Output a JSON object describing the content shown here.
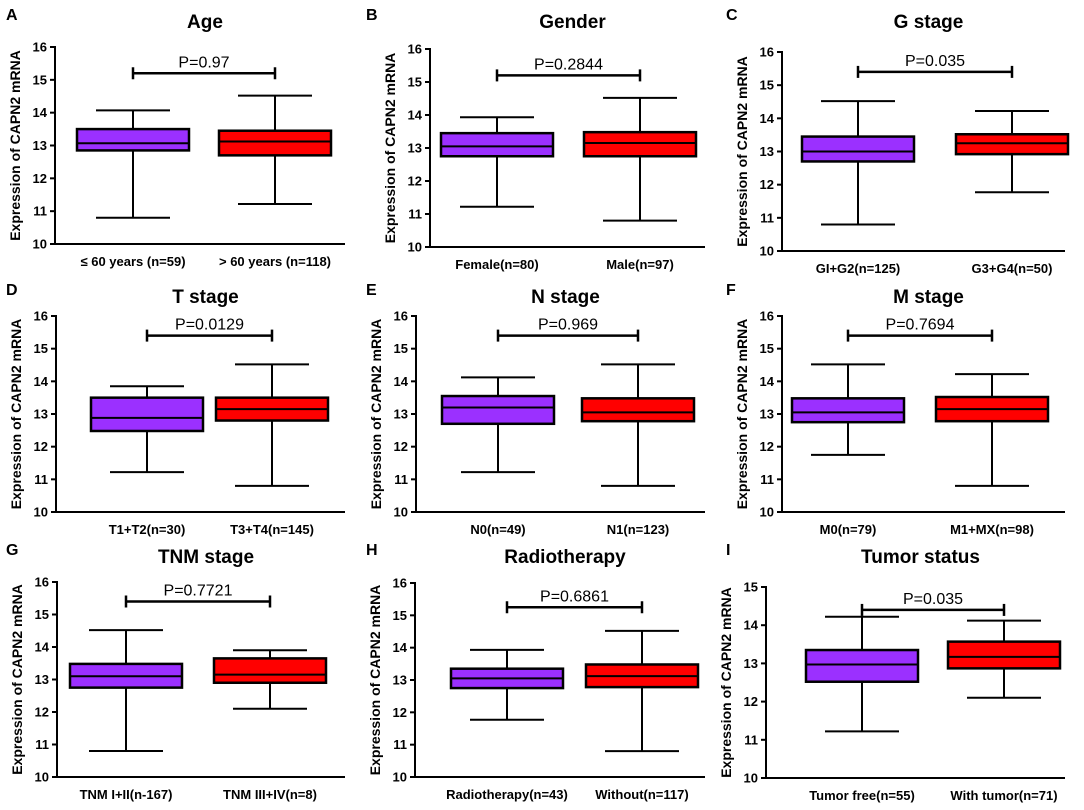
{
  "colors": {
    "group1": "#9b30ff",
    "group2": "#ff0000",
    "axis": "#000000"
  },
  "chart_data": [
    {
      "panel": "A",
      "type": "box",
      "title": "Age",
      "ylabel": "Expression of CAPN2 mRNA",
      "ylim": [
        10,
        16
      ],
      "yticks": [
        10,
        11,
        12,
        13,
        14,
        15,
        16
      ],
      "categories": [
        "≤ 60 years (n=59)",
        "> 60 years (n=118)"
      ],
      "boxes": [
        {
          "min": 10.8,
          "q1": 12.85,
          "median": 13.07,
          "q3": 13.5,
          "max": 14.07
        },
        {
          "min": 11.22,
          "q1": 12.7,
          "median": 13.12,
          "q3": 13.45,
          "max": 14.52
        }
      ],
      "pvalue": "P=0.97",
      "bracket_y": 15.2
    },
    {
      "panel": "B",
      "type": "box",
      "title": "Gender",
      "ylabel": "Expression of CAPN2 mRNA",
      "ylim": [
        10,
        16
      ],
      "yticks": [
        10,
        11,
        12,
        13,
        14,
        15,
        16
      ],
      "categories": [
        "Female(n=80)",
        "Male(n=97)"
      ],
      "boxes": [
        {
          "min": 11.22,
          "q1": 12.75,
          "median": 13.05,
          "q3": 13.45,
          "max": 13.93
        },
        {
          "min": 10.8,
          "q1": 12.75,
          "median": 13.15,
          "q3": 13.48,
          "max": 14.52
        }
      ],
      "pvalue": "P=0.2844",
      "bracket_y": 15.2
    },
    {
      "panel": "C",
      "type": "box",
      "title": "G stage",
      "ylabel": "Expression of CAPN2 mRNA",
      "ylim": [
        10,
        16
      ],
      "yticks": [
        10,
        11,
        12,
        13,
        14,
        15,
        16
      ],
      "categories": [
        "GI+G2(n=125)",
        "G3+G4(n=50)"
      ],
      "boxes": [
        {
          "min": 10.8,
          "q1": 12.7,
          "median": 13.0,
          "q3": 13.45,
          "max": 14.52
        },
        {
          "min": 11.77,
          "q1": 12.92,
          "median": 13.25,
          "q3": 13.52,
          "max": 14.22
        }
      ],
      "pvalue": "P=0.035",
      "bracket_y": 15.4
    },
    {
      "panel": "D",
      "type": "box",
      "title": "T stage",
      "ylabel": "Expression of CAPN2 mRNA",
      "ylim": [
        10,
        16
      ],
      "yticks": [
        10,
        11,
        12,
        13,
        14,
        15,
        16
      ],
      "categories": [
        "T1+T2(n=30)",
        "T3+T4(n=145)"
      ],
      "boxes": [
        {
          "min": 11.22,
          "q1": 12.48,
          "median": 12.88,
          "q3": 13.5,
          "max": 13.85
        },
        {
          "min": 10.8,
          "q1": 12.8,
          "median": 13.15,
          "q3": 13.5,
          "max": 14.52
        }
      ],
      "pvalue": "P=0.0129",
      "bracket_y": 15.4
    },
    {
      "panel": "E",
      "type": "box",
      "title": "N stage",
      "ylabel": "Expression of CAPN2 mRNA",
      "ylim": [
        10,
        16
      ],
      "yticks": [
        10,
        11,
        12,
        13,
        14,
        15,
        16
      ],
      "categories": [
        "N0(n=49)",
        "N1(n=123)"
      ],
      "boxes": [
        {
          "min": 11.22,
          "q1": 12.7,
          "median": 13.2,
          "q3": 13.55,
          "max": 14.12
        },
        {
          "min": 10.8,
          "q1": 12.78,
          "median": 13.05,
          "q3": 13.48,
          "max": 14.52
        }
      ],
      "pvalue": "P=0.969",
      "bracket_y": 15.4
    },
    {
      "panel": "F",
      "type": "box",
      "title": "M stage",
      "ylabel": "Expression of CAPN2 mRNA",
      "ylim": [
        10,
        16
      ],
      "yticks": [
        10,
        11,
        12,
        13,
        14,
        15,
        16
      ],
      "categories": [
        "M0(n=79)",
        "M1+MX(n=98)"
      ],
      "boxes": [
        {
          "min": 11.75,
          "q1": 12.75,
          "median": 13.05,
          "q3": 13.48,
          "max": 14.52
        },
        {
          "min": 10.8,
          "q1": 12.78,
          "median": 13.15,
          "q3": 13.52,
          "max": 14.22
        }
      ],
      "pvalue": "P=0.7694",
      "bracket_y": 15.4
    },
    {
      "panel": "G",
      "type": "box",
      "title": "TNM stage",
      "ylabel": "Expression of CAPN2 mRNA",
      "ylim": [
        10,
        16
      ],
      "yticks": [
        10,
        11,
        12,
        13,
        14,
        15,
        16
      ],
      "categories": [
        "TNM I+II(n-167)",
        "TNM III+IV(n=8)"
      ],
      "boxes": [
        {
          "min": 10.8,
          "q1": 12.75,
          "median": 13.1,
          "q3": 13.48,
          "max": 14.52
        },
        {
          "min": 12.1,
          "q1": 12.9,
          "median": 13.15,
          "q3": 13.65,
          "max": 13.9
        }
      ],
      "pvalue": "P=0.7721",
      "bracket_y": 15.4
    },
    {
      "panel": "H",
      "type": "box",
      "title": "Radiotherapy",
      "ylabel": "Expression of CAPN2 mRNA",
      "ylim": [
        10,
        16
      ],
      "yticks": [
        10,
        11,
        12,
        13,
        14,
        15,
        16
      ],
      "categories": [
        "Radiotherapy(n=43)",
        "Without(n=117)"
      ],
      "boxes": [
        {
          "min": 11.77,
          "q1": 12.75,
          "median": 13.05,
          "q3": 13.35,
          "max": 13.93
        },
        {
          "min": 10.8,
          "q1": 12.78,
          "median": 13.12,
          "q3": 13.48,
          "max": 14.52
        }
      ],
      "pvalue": "P=0.6861",
      "bracket_y": 15.25
    },
    {
      "panel": "I",
      "type": "box",
      "title": "Tumor status",
      "ylabel": "Expression of CAPN2 mRNA",
      "ylim": [
        10,
        15
      ],
      "yticks": [
        10,
        11,
        12,
        13,
        14,
        15
      ],
      "categories": [
        "Tumor free(n=55)",
        "With tumor(n=71)"
      ],
      "boxes": [
        {
          "min": 11.22,
          "q1": 12.52,
          "median": 12.97,
          "q3": 13.35,
          "max": 14.22
        },
        {
          "min": 12.1,
          "q1": 12.87,
          "median": 13.17,
          "q3": 13.57,
          "max": 14.12
        }
      ],
      "pvalue": "P=0.035",
      "bracket_y": 14.4
    }
  ]
}
